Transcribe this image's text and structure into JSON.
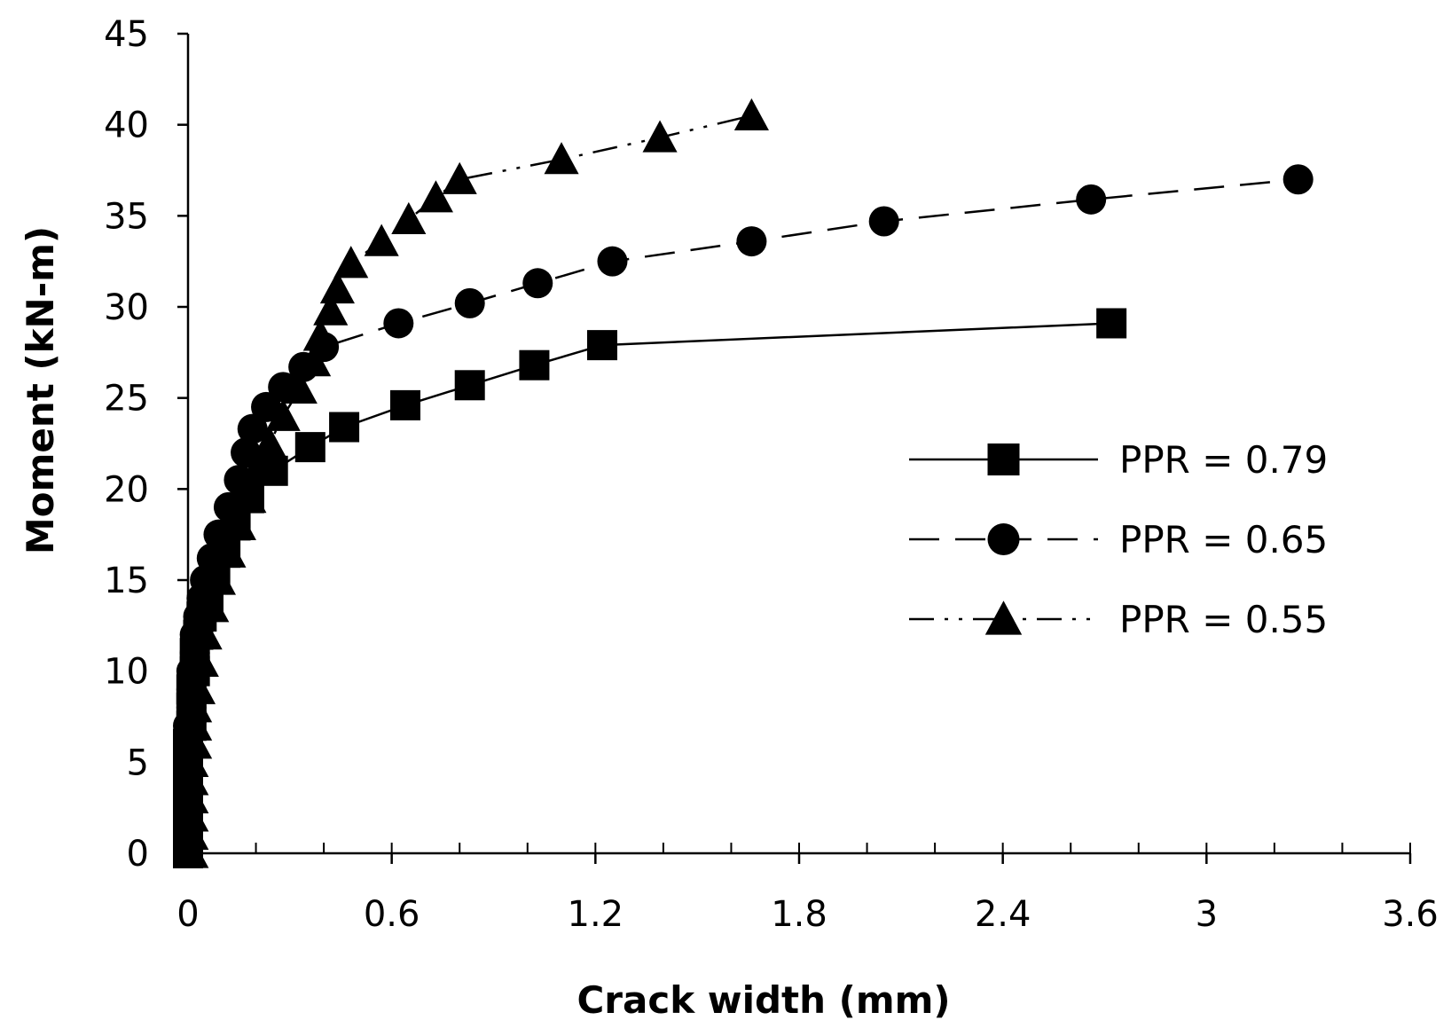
{
  "chart_data": {
    "type": "line",
    "title": "",
    "xlabel": "Crack width (mm)",
    "ylabel": "Moment (kN-m)",
    "xlim": [
      0,
      3.6
    ],
    "ylim": [
      0,
      45
    ],
    "x_ticks": [
      "0",
      "0.6",
      "1.2",
      "1.8",
      "2.4",
      "3",
      "3.6"
    ],
    "y_ticks": [
      "0",
      "5",
      "10",
      "15",
      "20",
      "25",
      "30",
      "35",
      "40",
      "45"
    ],
    "x_tick_values": [
      0,
      0.6,
      1.2,
      1.8,
      2.4,
      3.0,
      3.6
    ],
    "y_tick_values": [
      0,
      5,
      10,
      15,
      20,
      25,
      30,
      35,
      40,
      45
    ],
    "x_minor_step": 0.2,
    "grid": false,
    "legend": {
      "position": "center-right"
    },
    "series": [
      {
        "name": "PPR = 0.79",
        "marker": "square",
        "line": "solid",
        "points": [
          [
            0.0,
            0
          ],
          [
            0.0,
            1
          ],
          [
            0.0,
            2
          ],
          [
            0.0,
            3
          ],
          [
            0.0,
            4
          ],
          [
            0.0,
            5
          ],
          [
            0.0,
            6
          ],
          [
            0.01,
            7
          ],
          [
            0.01,
            8
          ],
          [
            0.01,
            9
          ],
          [
            0.02,
            10
          ],
          [
            0.02,
            11
          ],
          [
            0.03,
            12
          ],
          [
            0.04,
            13
          ],
          [
            0.06,
            14
          ],
          [
            0.08,
            15.2
          ],
          [
            0.11,
            16.5
          ],
          [
            0.14,
            18
          ],
          [
            0.18,
            19.5
          ],
          [
            0.25,
            21
          ],
          [
            0.36,
            22.3
          ],
          [
            0.46,
            23.4
          ],
          [
            0.64,
            24.6
          ],
          [
            0.83,
            25.7
          ],
          [
            1.02,
            26.8
          ],
          [
            1.22,
            27.9
          ],
          [
            2.72,
            29.1
          ]
        ]
      },
      {
        "name": "PPR = 0.65",
        "marker": "circle",
        "line": "dashed",
        "points": [
          [
            0.0,
            0
          ],
          [
            0.0,
            1
          ],
          [
            0.0,
            2
          ],
          [
            0.0,
            3
          ],
          [
            0.0,
            4
          ],
          [
            0.0,
            5
          ],
          [
            0.0,
            6
          ],
          [
            0.0,
            7
          ],
          [
            0.01,
            8
          ],
          [
            0.01,
            9
          ],
          [
            0.01,
            10
          ],
          [
            0.02,
            11
          ],
          [
            0.02,
            12
          ],
          [
            0.03,
            13
          ],
          [
            0.04,
            14
          ],
          [
            0.05,
            15
          ],
          [
            0.07,
            16.2
          ],
          [
            0.09,
            17.5
          ],
          [
            0.12,
            19
          ],
          [
            0.15,
            20.5
          ],
          [
            0.17,
            22
          ],
          [
            0.19,
            23.3
          ],
          [
            0.23,
            24.5
          ],
          [
            0.28,
            25.6
          ],
          [
            0.34,
            26.7
          ],
          [
            0.4,
            27.8
          ],
          [
            0.62,
            29.1
          ],
          [
            0.83,
            30.2
          ],
          [
            1.03,
            31.3
          ],
          [
            1.25,
            32.5
          ],
          [
            1.66,
            33.6
          ],
          [
            2.05,
            34.7
          ],
          [
            2.66,
            35.9
          ],
          [
            3.27,
            37.0
          ]
        ]
      },
      {
        "name": "PPR = 0.55",
        "marker": "triangle",
        "line": "dash-dot-dot",
        "points": [
          [
            0.01,
            0
          ],
          [
            0.01,
            1
          ],
          [
            0.01,
            2
          ],
          [
            0.01,
            3
          ],
          [
            0.01,
            4
          ],
          [
            0.01,
            5
          ],
          [
            0.02,
            6
          ],
          [
            0.02,
            7
          ],
          [
            0.02,
            8
          ],
          [
            0.03,
            9
          ],
          [
            0.04,
            10.5
          ],
          [
            0.05,
            12
          ],
          [
            0.07,
            13.5
          ],
          [
            0.09,
            15
          ],
          [
            0.12,
            16.5
          ],
          [
            0.15,
            18
          ],
          [
            0.18,
            19.5
          ],
          [
            0.2,
            21
          ],
          [
            0.24,
            22.5
          ],
          [
            0.28,
            24
          ],
          [
            0.33,
            25.5
          ],
          [
            0.37,
            27
          ],
          [
            0.39,
            28.4
          ],
          [
            0.42,
            29.8
          ],
          [
            0.44,
            31
          ],
          [
            0.48,
            32.4
          ],
          [
            0.57,
            33.6
          ],
          [
            0.65,
            34.8
          ],
          [
            0.73,
            36
          ],
          [
            0.8,
            37
          ],
          [
            1.1,
            38.1
          ],
          [
            1.39,
            39.3
          ],
          [
            1.66,
            40.5
          ]
        ]
      }
    ]
  }
}
